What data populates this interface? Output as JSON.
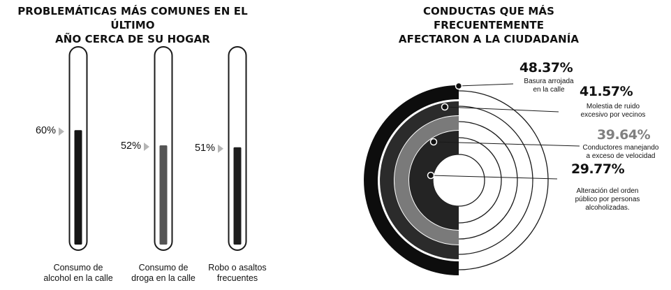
{
  "chart_data": [
    {
      "type": "bar",
      "title": "PROBLEMÁTICAS MÁS COMUNES EN EL ÚLTIMO\nAÑO CERCA DE SU HOGAR",
      "categories": [
        "Consumo de\nalcohol en la calle",
        "Consumo de\ndroga en la calle",
        "Robo o asaltos\nfrecuentes"
      ],
      "values": [
        60,
        52,
        51
      ],
      "value_labels": [
        "60%",
        "52%",
        "51%"
      ],
      "ylim": [
        0,
        100
      ],
      "colors": [
        "#151515",
        "#555555",
        "#1e1e1e"
      ]
    },
    {
      "type": "pie",
      "title": "CONDUCTAS QUE MÁS FRECUENTEMENTE\nAFECTARON A LA CIUDADANÍA",
      "categories": [
        "Basura arrojada\nen la calle",
        "Molestia de ruido\nexcesivo por vecinos",
        "Conductores manejando\na exceso de velocidad",
        "Alteración del orden\npúblico por personas\nalcoholizadas."
      ],
      "values": [
        48.37,
        41.57,
        39.64,
        29.77
      ],
      "value_labels": [
        "48.37%",
        "41.57%",
        "39.64%",
        "29.77%"
      ],
      "colors": [
        "#0d0d0d",
        "#2b2b2b",
        "#7a7a7a",
        "#242424"
      ],
      "label_colors": [
        "#111111",
        "#111111",
        "#808080",
        "#111111"
      ]
    }
  ]
}
